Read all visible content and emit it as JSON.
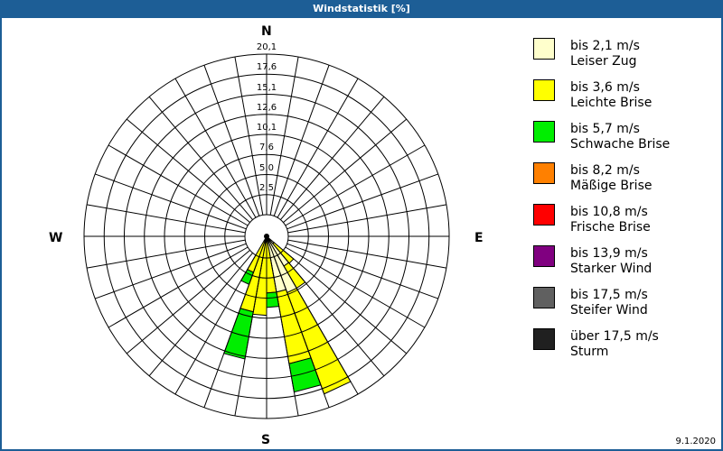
{
  "title": "Windstatistik [%]",
  "date": "9.1.2020",
  "compass": {
    "n": "N",
    "e": "E",
    "s": "S",
    "w": "W"
  },
  "chart_data": {
    "type": "polar-stacked-bar (wind rose)",
    "title": "Windstatistik [%]",
    "unit": "%",
    "radial_ticks": [
      "2,5",
      "5,0",
      "7,6",
      "10,1",
      "12,6",
      "15,1",
      "17,6",
      "20,1"
    ],
    "radial_max": 20.1,
    "sector_width_deg": 10,
    "directions_deg": [
      135,
      145,
      155,
      165,
      175,
      185,
      195,
      205
    ],
    "series": [
      {
        "name": "bis 2,1 m/s Leiser Zug",
        "color": "#ffffcc",
        "values": [
          1.2,
          4.3,
          7.5,
          7.1,
          0.6,
          0.6,
          0.8,
          0.6
        ]
      },
      {
        "name": "bis 3,6 m/s Leichte Brise",
        "color": "#ffff00",
        "values": [
          3.2,
          3.2,
          13.5,
          9.1,
          6.5,
          9.3,
          8.8,
          4.2
        ]
      },
      {
        "name": "bis 5,7 m/s Schwache Brise",
        "color": "#00ee00",
        "values": [
          0,
          0,
          0,
          3.6,
          1.8,
          0,
          6.0,
          1.6
        ]
      },
      {
        "name": "bis 8,2 m/s Mäßige Brise",
        "color": "#ff8000",
        "values": [
          0,
          0,
          0,
          0,
          0,
          0,
          0,
          0
        ]
      },
      {
        "name": "bis 10,8 m/s Frische Brise",
        "color": "#ff0000",
        "values": [
          0,
          0,
          0,
          0,
          0,
          0,
          0,
          0
        ]
      },
      {
        "name": "bis 13,9 m/s Starker Wind",
        "color": "#800080",
        "values": [
          0,
          0,
          0,
          0,
          0,
          0,
          0,
          0
        ]
      },
      {
        "name": "bis 17,5 m/s Steifer Wind",
        "color": "#606060",
        "values": [
          0,
          0,
          0,
          0,
          0,
          0,
          0,
          0
        ]
      },
      {
        "name": "über 17,5 m/s Sturm",
        "color": "#202020",
        "values": [
          0,
          0,
          0,
          0,
          0,
          0,
          0,
          0
        ]
      }
    ],
    "legend_position": "right",
    "grid": true
  },
  "legend": [
    {
      "line1": "bis 2,1 m/s",
      "line2": "Leiser Zug",
      "color": "#ffffcc"
    },
    {
      "line1": "bis 3,6 m/s",
      "line2": "Leichte Brise",
      "color": "#ffff00"
    },
    {
      "line1": "bis 5,7 m/s",
      "line2": "Schwache Brise",
      "color": "#00ee00"
    },
    {
      "line1": "bis 8,2 m/s",
      "line2": "Mäßige Brise",
      "color": "#ff8000"
    },
    {
      "line1": "bis 10,8 m/s",
      "line2": "Frische Brise",
      "color": "#ff0000"
    },
    {
      "line1": "bis 13,9 m/s",
      "line2": "Starker Wind",
      "color": "#800080"
    },
    {
      "line1": "bis 17,5 m/s",
      "line2": "Steifer Wind",
      "color": "#606060"
    },
    {
      "line1": "über 17,5 m/s",
      "line2": "Sturm",
      "color": "#202020"
    }
  ]
}
